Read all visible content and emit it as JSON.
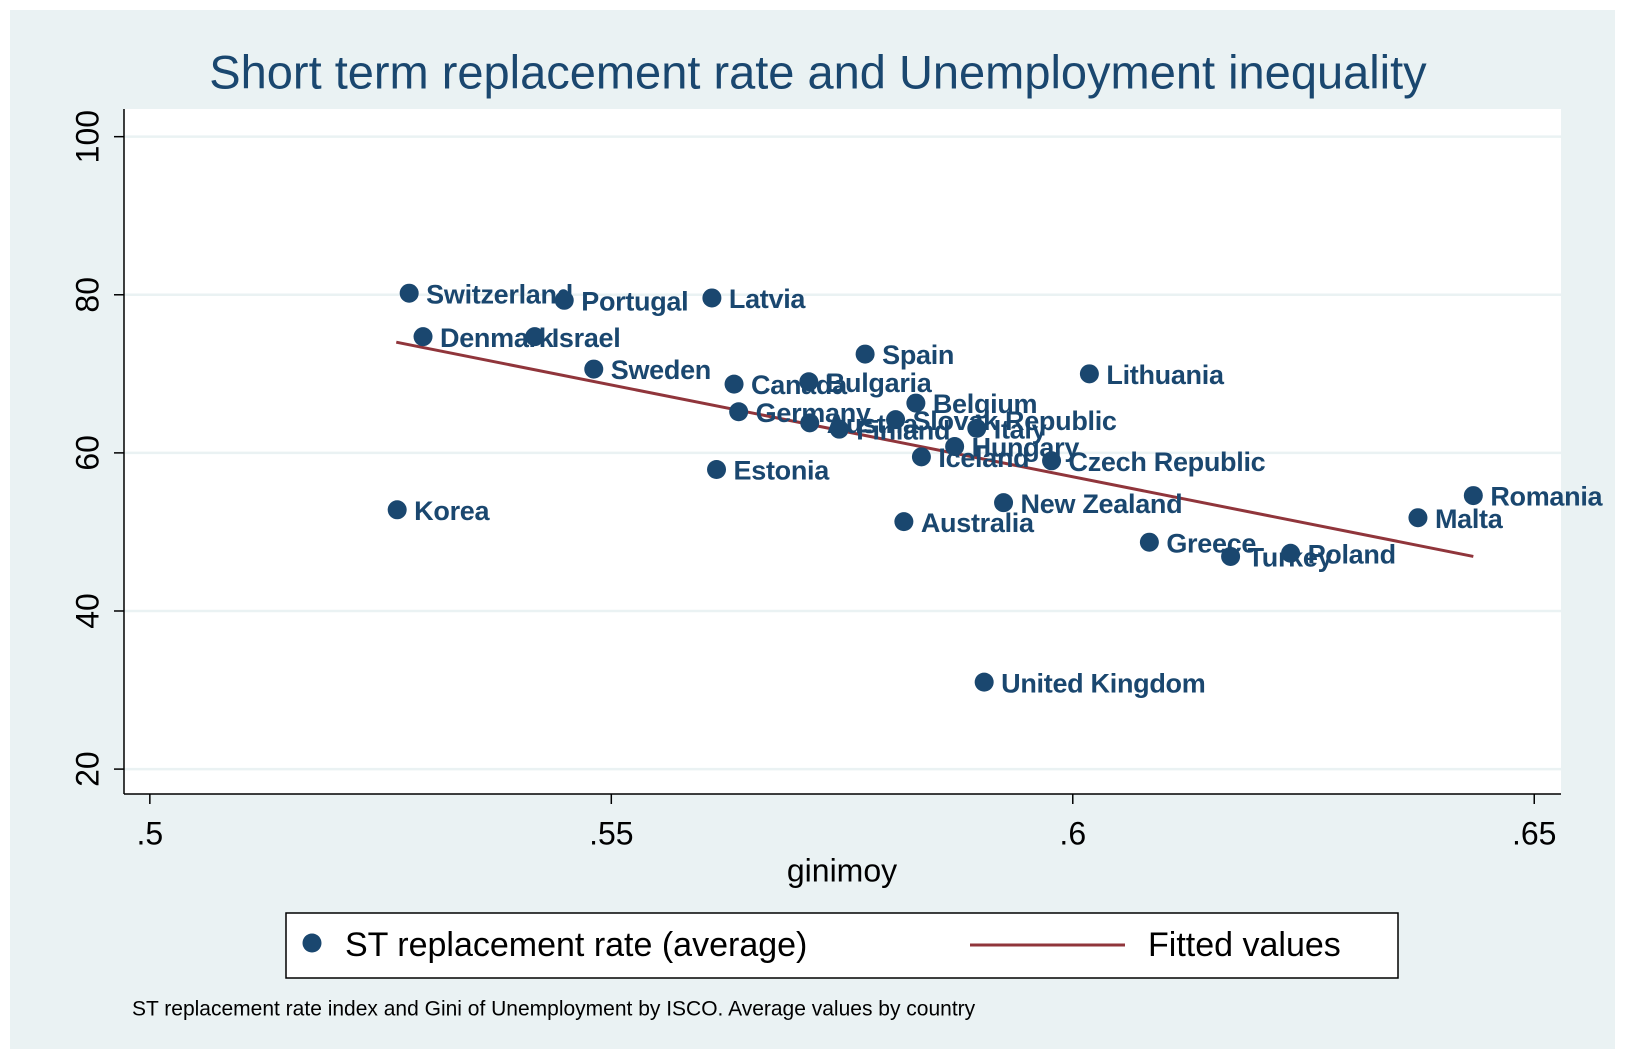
{
  "chart_data": {
    "type": "scatter",
    "title": "Short term replacement rate and Unemployment inequality",
    "x_label": "ginimoy",
    "note": "ST replacement rate index and Gini of Unemployment by ISCO. Average values by country",
    "xlim": [
      0.4972,
      0.6529
    ],
    "ylim": [
      16.85,
      103.5
    ],
    "xticks": [
      {
        "value": 0.5,
        "label": ".5"
      },
      {
        "value": 0.55,
        "label": ".55"
      },
      {
        "value": 0.6,
        "label": ".6"
      },
      {
        "value": 0.65,
        "label": ".65"
      }
    ],
    "yticks": [
      20,
      40,
      60,
      80,
      100
    ],
    "grid": true,
    "series": [
      {
        "name": "ST replacement rate (average)",
        "type": "scatter",
        "color": "#1a476f",
        "labels": [
          "Switzerland",
          "Portugal",
          "Latvia",
          "Denmark",
          "Israel",
          "Sweden",
          "Canada",
          "Bulgaria",
          "Spain",
          "Lithuania",
          "Belgium",
          "Germany",
          "Austria",
          "Finland",
          "Slovak Republic",
          "Italy",
          "Hungary",
          "Iceland",
          "Czech Republic",
          "Estonia",
          "Korea",
          "New Zealand",
          "Australia",
          "Greece",
          "Turkey",
          "Poland",
          "Malta",
          "Romania",
          "United Kingdom"
        ],
        "x": [
          0.5281,
          0.5449,
          0.5609,
          0.5296,
          0.5417,
          0.5481,
          0.5633,
          0.5714,
          0.5775,
          0.6018,
          0.583,
          0.5638,
          0.5715,
          0.5747,
          0.5808,
          0.5896,
          0.5872,
          0.5836,
          0.5977,
          0.5614,
          0.5268,
          0.5925,
          0.5817,
          0.6083,
          0.6171,
          0.6236,
          0.6374,
          0.6434,
          0.5904
        ],
        "values": [
          80.2,
          79.3,
          79.6,
          74.7,
          74.7,
          70.6,
          68.7,
          69.0,
          72.5,
          70.0,
          66.3,
          65.2,
          63.8,
          63.0,
          64.2,
          63.1,
          60.8,
          59.5,
          59.0,
          57.9,
          52.8,
          53.7,
          51.3,
          48.7,
          46.9,
          47.3,
          51.8,
          54.6,
          31.0
        ]
      },
      {
        "name": "Fitted values",
        "type": "line",
        "color": "#90353b",
        "x": [
          0.5267,
          0.6434
        ],
        "values": [
          74.0,
          46.9
        ]
      }
    ]
  }
}
